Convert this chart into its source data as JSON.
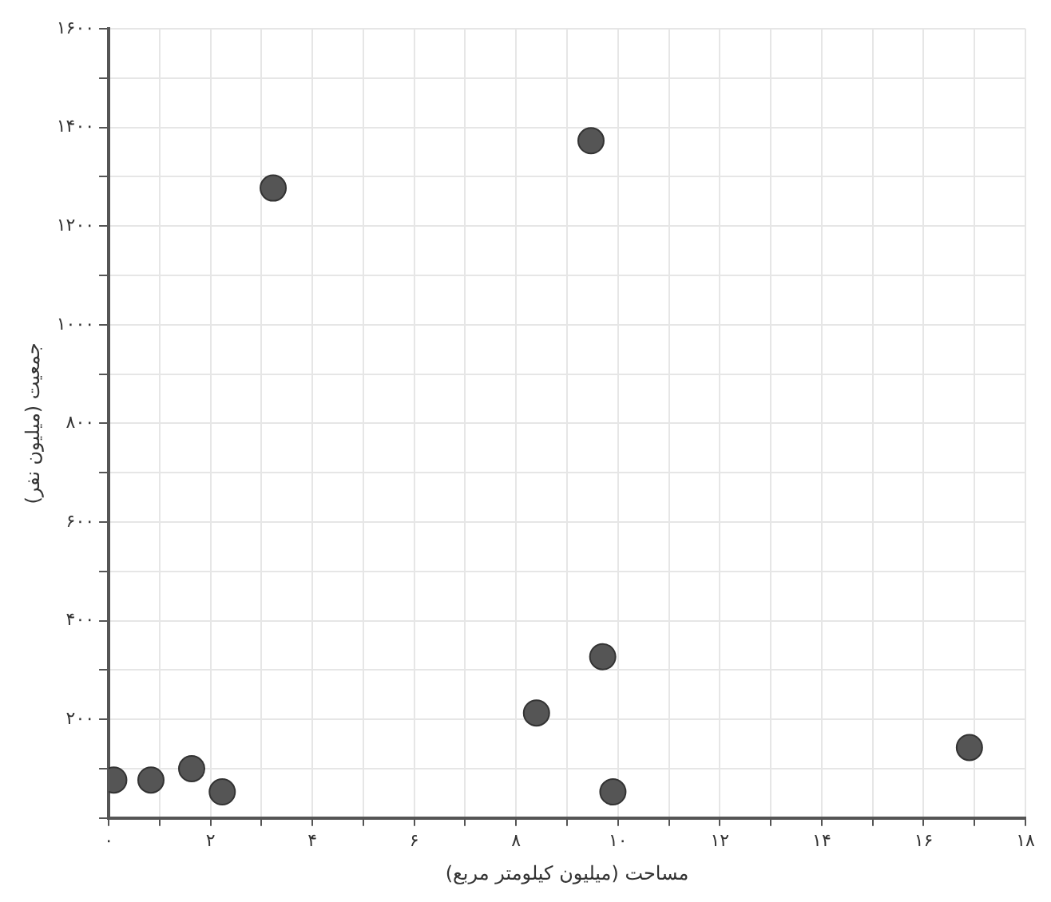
{
  "chart_data": {
    "type": "scatter",
    "xlabel": "مساحت (میلیون کیلومتر مربع)",
    "ylabel": "جمعیت (میلیون نفر)",
    "x": [
      0.1,
      0.83,
      1.63,
      2.23,
      3.23,
      9.47,
      8.4,
      9.7,
      9.9,
      16.9
    ],
    "values": [
      77,
      77,
      100,
      53,
      1277,
      1373,
      213,
      327,
      53,
      143
    ],
    "color": "#555555",
    "marker": "circle",
    "grid": true,
    "xlim": [
      0,
      18
    ],
    "xticks": [
      {
        "value": 0,
        "label": "۰"
      },
      {
        "value": 1,
        "label": null
      },
      {
        "value": 2,
        "label": "۲"
      },
      {
        "value": 3,
        "label": null
      },
      {
        "value": 4,
        "label": "۴"
      },
      {
        "value": 5,
        "label": null
      },
      {
        "value": 6,
        "label": "۶"
      },
      {
        "value": 7,
        "label": null
      },
      {
        "value": 8,
        "label": "۸"
      },
      {
        "value": 9,
        "label": null
      },
      {
        "value": 10,
        "label": "۱۰"
      },
      {
        "value": 11,
        "label": null
      },
      {
        "value": 12,
        "label": "۱۲"
      },
      {
        "value": 13,
        "label": null
      },
      {
        "value": 14,
        "label": "۱۴"
      },
      {
        "value": 15,
        "label": null
      },
      {
        "value": 16,
        "label": "۱۶"
      },
      {
        "value": 17,
        "label": null
      },
      {
        "value": 18,
        "label": "۱۸"
      }
    ],
    "ylim": [
      0,
      1600
    ],
    "yticks": [
      {
        "value": 0,
        "label": null
      },
      {
        "value": 100,
        "label": null
      },
      {
        "value": 200,
        "label": "۲۰۰"
      },
      {
        "value": 300,
        "label": null
      },
      {
        "value": 400,
        "label": "۴۰۰"
      },
      {
        "value": 500,
        "label": null
      },
      {
        "value": 600,
        "label": "۶۰۰"
      },
      {
        "value": 700,
        "label": null
      },
      {
        "value": 800,
        "label": "۸۰۰"
      },
      {
        "value": 900,
        "label": null
      },
      {
        "value": 1000,
        "label": "۱۰۰۰"
      },
      {
        "value": 1100,
        "label": null
      },
      {
        "value": 1200,
        "label": "۱۲۰۰"
      },
      {
        "value": 1300,
        "label": null
      },
      {
        "value": 1400,
        "label": "۱۴۰۰"
      },
      {
        "value": 1500,
        "label": null
      },
      {
        "value": 1600,
        "label": "۱۶۰۰"
      }
    ]
  }
}
